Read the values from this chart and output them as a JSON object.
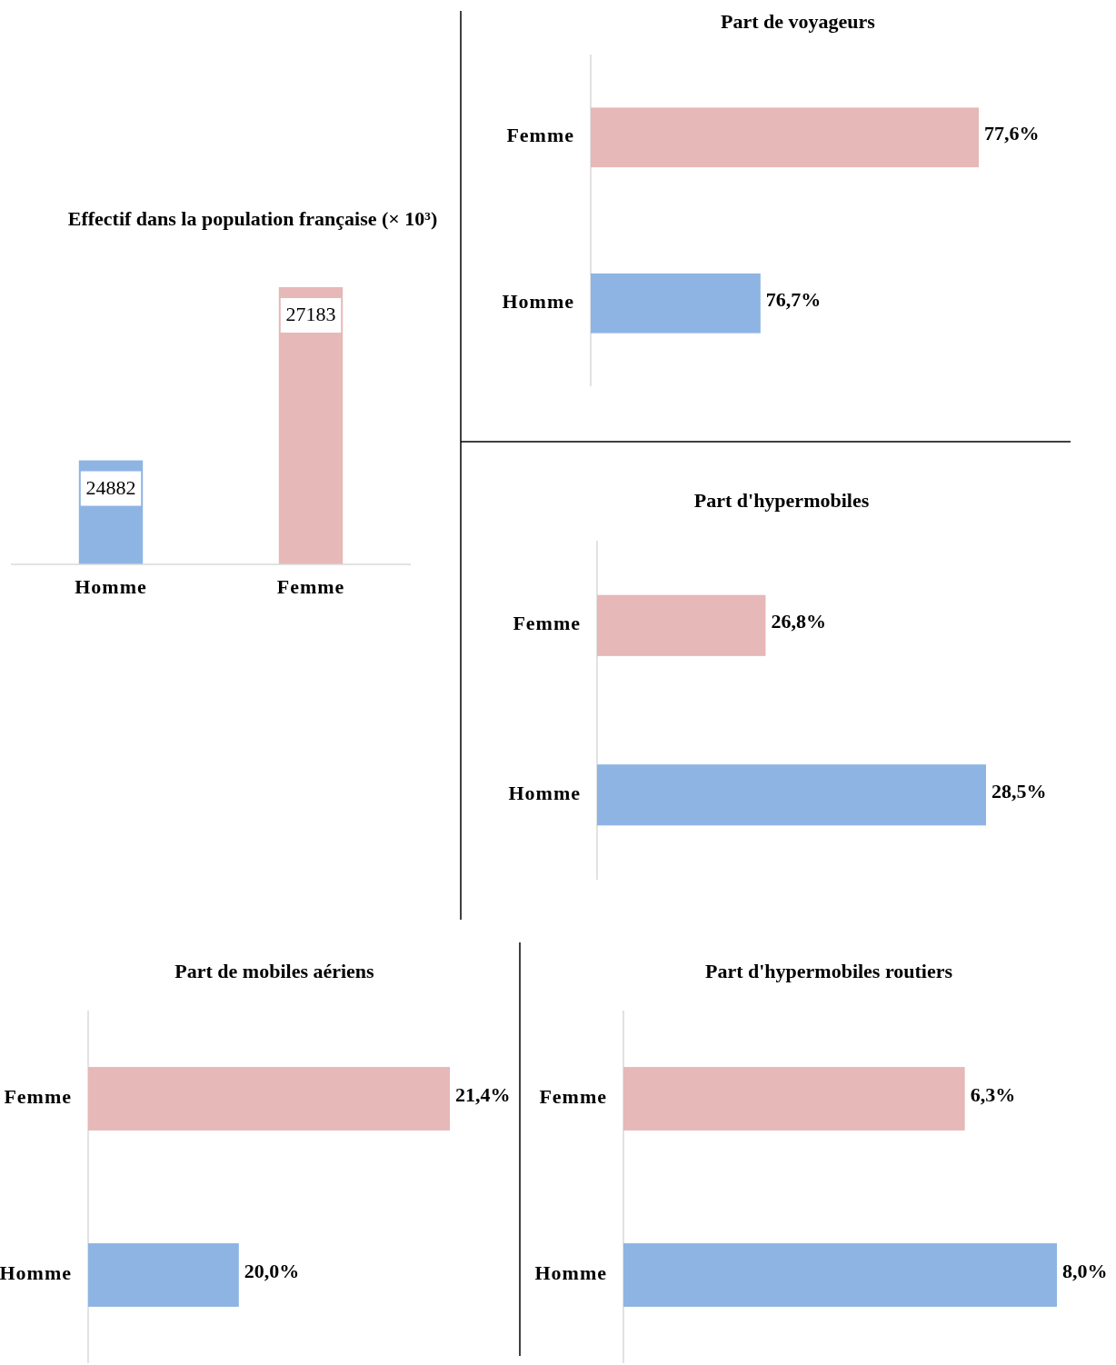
{
  "chart_data": [
    {
      "type": "bar",
      "title": "Effectif dans la population  française (× 10³)",
      "categories": [
        "Homme",
        "Femme"
      ],
      "values": [
        24882,
        27183
      ],
      "colors": [
        "#8eb4e3",
        "#e6b8b7"
      ],
      "ylim": [
        23500,
        27183
      ],
      "data_labels": true,
      "tick_labels": "x"
    },
    {
      "type": "bar",
      "orientation": "horizontal",
      "title": "Part de voyageurs",
      "categories": [
        "Femme",
        "Homme"
      ],
      "values": [
        77.6,
        76.7
      ],
      "value_labels": [
        "77,6%",
        "76,7%"
      ],
      "colors": [
        "#e6b8b7",
        "#8eb4e3"
      ],
      "xlim": [
        76,
        77.6
      ],
      "tick_labels": "y"
    },
    {
      "type": "bar",
      "orientation": "horizontal",
      "title": "Part d'hypermobiles",
      "categories": [
        "Femme",
        "Homme"
      ],
      "values": [
        26.8,
        28.5
      ],
      "value_labels": [
        "26,8%",
        "28,5%"
      ],
      "colors": [
        "#e6b8b7",
        "#8eb4e3"
      ],
      "xlim": [
        25.5,
        28.5
      ],
      "tick_labels": "y"
    },
    {
      "type": "bar",
      "orientation": "horizontal",
      "title": "Part de mobiles aériens",
      "categories": [
        "Femme",
        "Homme"
      ],
      "values": [
        21.4,
        20.0
      ],
      "value_labels": [
        "21,4%",
        "20,0%"
      ],
      "colors": [
        "#e6b8b7",
        "#8eb4e3"
      ],
      "xlim": [
        19,
        21.4
      ],
      "tick_labels": "y"
    },
    {
      "type": "bar",
      "orientation": "horizontal",
      "title": "Part d'hypermobiles routiers",
      "categories": [
        "Femme",
        "Homme"
      ],
      "values": [
        6.3,
        8.0
      ],
      "value_labels": [
        "6,3%",
        "8,0%"
      ],
      "colors": [
        "#e6b8b7",
        "#8eb4e3"
      ],
      "xlim": [
        0,
        8
      ],
      "tick_labels": "y"
    }
  ]
}
